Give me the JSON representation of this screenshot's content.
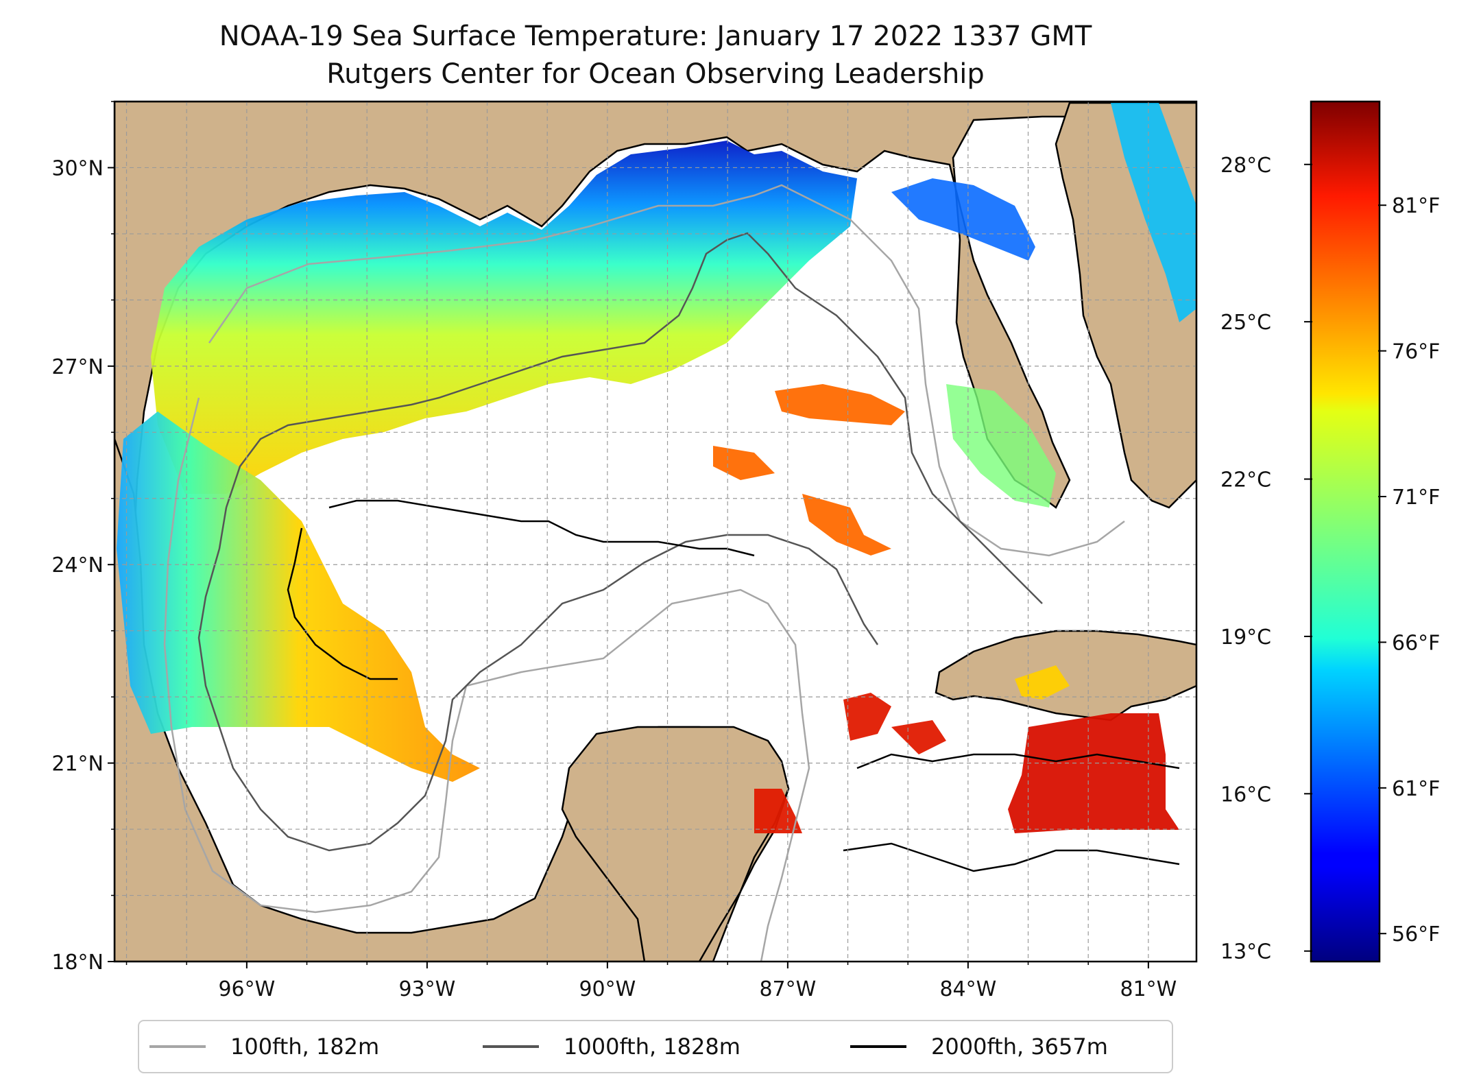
{
  "title": {
    "line1": "NOAA-19 Sea Surface Temperature: January 17 2022 1337 GMT",
    "line2": "Rutgers Center for Ocean Observing Leadership"
  },
  "map": {
    "lon_range": [
      -98.2,
      -80.2
    ],
    "lat_range": [
      18.0,
      31.0
    ],
    "lat_ticks": [
      {
        "value": 30,
        "label": "30°N"
      },
      {
        "value": 27,
        "label": "27°N"
      },
      {
        "value": 24,
        "label": "24°N"
      },
      {
        "value": 21,
        "label": "21°N"
      },
      {
        "value": 18,
        "label": "18°N"
      }
    ],
    "lon_ticks": [
      {
        "value": -96,
        "label": "96°W"
      },
      {
        "value": -93,
        "label": "93°W"
      },
      {
        "value": -90,
        "label": "90°W"
      },
      {
        "value": -87,
        "label": "87°W"
      },
      {
        "value": -84,
        "label": "84°W"
      },
      {
        "value": -81,
        "label": "81°W"
      }
    ],
    "gridlines": true,
    "land_color": "#cfb28b",
    "ocean_color": "#ffffff"
  },
  "colorbar": {
    "colormap": "jet",
    "celsius_range": [
      12.8,
      29.2
    ],
    "celsius_ticks": [
      {
        "value": 28,
        "label": "28°C"
      },
      {
        "value": 25,
        "label": "25°C"
      },
      {
        "value": 22,
        "label": "22°C"
      },
      {
        "value": 19,
        "label": "19°C"
      },
      {
        "value": 16,
        "label": "16°C"
      },
      {
        "value": 13,
        "label": "13°C"
      }
    ],
    "fahrenheit_ticks": [
      {
        "value": 81,
        "label": "81°F"
      },
      {
        "value": 76,
        "label": "76°F"
      },
      {
        "value": 71,
        "label": "71°F"
      },
      {
        "value": 66,
        "label": "66°F"
      },
      {
        "value": 61,
        "label": "61°F"
      },
      {
        "value": 56,
        "label": "56°F"
      }
    ]
  },
  "legend": {
    "placement": "bottom",
    "items": [
      {
        "label": "100fth, 182m",
        "color": "#a6a6a6"
      },
      {
        "label": "1000fth, 1828m",
        "color": "#555555"
      },
      {
        "label": "2000fth, 3657m",
        "color": "#000000"
      }
    ]
  }
}
